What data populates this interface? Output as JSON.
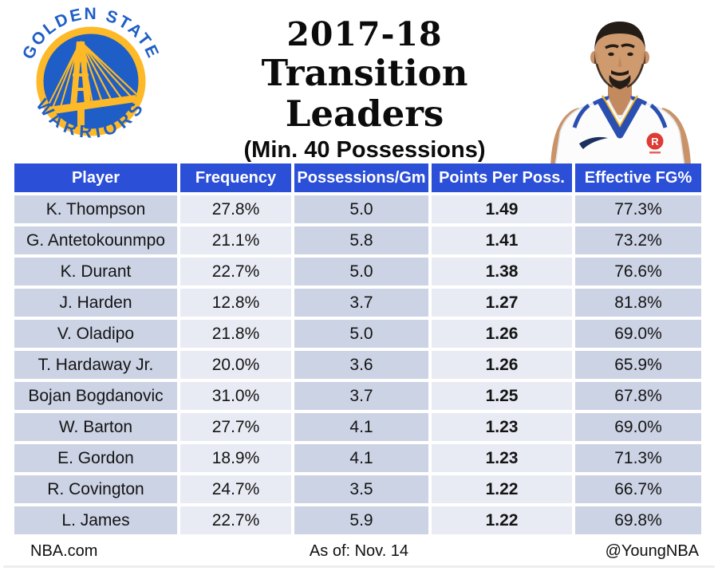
{
  "title": {
    "line1": "2017-18",
    "line2": "Transition Leaders",
    "line3": "(Min. 40 Possessions)"
  },
  "logo": {
    "arc_top": "GOLDEN STATE",
    "arc_bottom": "WARRIORS"
  },
  "photo": {
    "patch_letter": "R"
  },
  "chart_data": {
    "type": "table",
    "title": "2017-18 Transition Leaders",
    "subtitle": "(Min. 40 Possessions)",
    "columns": [
      "Player",
      "Frequency",
      "Possessions/Gm",
      "Points Per Poss.",
      "Effective FG%"
    ],
    "rows": [
      [
        "K. Thompson",
        "27.8%",
        "5.0",
        "1.49",
        "77.3%"
      ],
      [
        "G. Antetokounmpo",
        "21.1%",
        "5.8",
        "1.41",
        "73.2%"
      ],
      [
        "K. Durant",
        "22.7%",
        "5.0",
        "1.38",
        "76.6%"
      ],
      [
        "J. Harden",
        "12.8%",
        "3.7",
        "1.27",
        "81.8%"
      ],
      [
        "V. Oladipo",
        "21.8%",
        "5.0",
        "1.26",
        "69.0%"
      ],
      [
        "T. Hardaway Jr.",
        "20.0%",
        "3.6",
        "1.26",
        "65.9%"
      ],
      [
        "Bojan Bogdanovic",
        "31.0%",
        "3.7",
        "1.25",
        "67.8%"
      ],
      [
        "W. Barton",
        "27.7%",
        "4.1",
        "1.23",
        "69.0%"
      ],
      [
        "E. Gordon",
        "18.9%",
        "4.1",
        "1.23",
        "71.3%"
      ],
      [
        "R. Covington",
        "24.7%",
        "3.5",
        "1.22",
        "66.7%"
      ],
      [
        "L. James",
        "22.7%",
        "5.9",
        "1.22",
        "69.8%"
      ]
    ]
  },
  "footer": {
    "left": "NBA.com",
    "center": "As of: Nov. 14",
    "right": "@YoungNBA"
  },
  "colors": {
    "header_blue": "#2b4fd7",
    "band_dark": "#ccd3e5",
    "band_light": "#e9ebf4",
    "logo_blue": "#1e5ec6",
    "logo_gold": "#fdb927",
    "patch_red": "#dd3b33"
  }
}
